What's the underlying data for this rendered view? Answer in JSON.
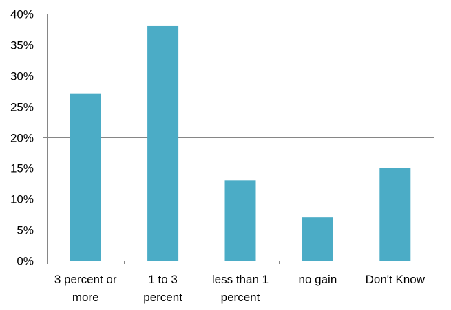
{
  "chart_data": {
    "type": "bar",
    "categories": [
      [
        "3 percent or",
        "more"
      ],
      [
        "1 to 3",
        "percent"
      ],
      [
        "less than 1",
        "percent"
      ],
      [
        "no gain"
      ],
      [
        "Don't Know"
      ]
    ],
    "values": [
      27,
      38,
      13,
      7,
      15
    ],
    "ylim": [
      0,
      40
    ],
    "yticks": [
      0,
      5,
      10,
      15,
      20,
      25,
      30,
      35,
      40
    ],
    "ytick_labels": [
      "0%",
      "5%",
      "10%",
      "15%",
      "20%",
      "25%",
      "30%",
      "35%",
      "40%"
    ],
    "grid": true,
    "legend": "none",
    "bar_color": "#4BACC6",
    "grid_color": "#868686",
    "axis_color": "#868686",
    "title": "",
    "xlabel": "",
    "ylabel": ""
  }
}
